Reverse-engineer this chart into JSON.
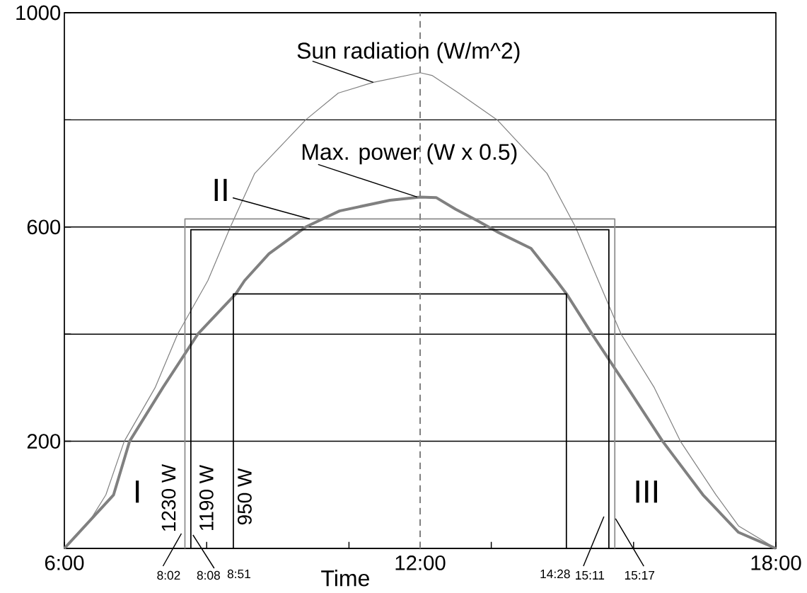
{
  "chart_data": {
    "type": "line",
    "xlabel": "Time",
    "xlim": [
      6,
      18
    ],
    "ylim": [
      0,
      1000
    ],
    "xticks": [
      {
        "value": 6,
        "label": "6:00"
      },
      {
        "value": 8.4,
        "label": null
      },
      {
        "value": 10.8,
        "label": null
      },
      {
        "value": 12,
        "label": "12:00"
      },
      {
        "value": 13.2,
        "label": null
      },
      {
        "value": 15.6,
        "label": null
      },
      {
        "value": 18,
        "label": "18:00"
      }
    ],
    "yticks": [
      {
        "value": 0,
        "label": null
      },
      200,
      {
        "value": 400,
        "label": null
      },
      600,
      {
        "value": 800,
        "label": null
      },
      1000
    ],
    "grid": "y",
    "line_style": "solid",
    "series": [
      {
        "color": "#808080",
        "x": [
          6,
          6.42,
          6.7,
          7.01,
          7.53,
          7.91,
          8.42,
          8.8,
          9.21,
          10.07,
          10.62,
          11.21,
          12,
          12.2,
          12.65,
          13.3,
          14.14,
          14.62,
          15.39,
          15.95,
          16.39,
          16.99,
          17.37,
          18
        ],
        "values": [
          0,
          50,
          100,
          200,
          300,
          400,
          500,
          600,
          700,
          800,
          850,
          870,
          888,
          883,
          850,
          800,
          700,
          600,
          400,
          300,
          200,
          100,
          42,
          0
        ]
      },
      {
        "color": "#808080",
        "x": [
          6,
          6.83,
          7.1,
          7.66,
          8.25,
          8.89,
          9.04,
          9.45,
          10.07,
          10.64,
          11.49,
          12,
          12.27,
          12.6,
          12.98,
          13.3,
          13.87,
          14.3,
          14.47,
          14.9,
          15.5,
          16.09,
          16.77,
          17.37,
          18
        ],
        "values": [
          0,
          100,
          200,
          300,
          400,
          475,
          500,
          550,
          600,
          630,
          650,
          656,
          655,
          633,
          611,
          591,
          560,
          500,
          475,
          400,
          300,
          200,
          100,
          30,
          0
        ]
      },
      {
        "name": "1230 W",
        "color": "#8c8c8c",
        "x": [
          8.0333,
          8.0333,
          15.2833,
          15.2833
        ],
        "values": [
          0,
          615,
          615,
          0
        ]
      },
      {
        "name": "1190 W",
        "color": "#000000",
        "x": [
          8.1333,
          8.1333,
          15.1833,
          15.1833
        ],
        "values": [
          0,
          595,
          595,
          0
        ]
      },
      {
        "name": "950 W",
        "color": "#000000",
        "x": [
          8.85,
          8.85,
          14.4667,
          14.4667
        ],
        "values": [
          0,
          475,
          475,
          0
        ]
      }
    ],
    "ref_lines": [
      {
        "axis": "x",
        "value": 12,
        "color": "#808080",
        "line_style": "dashed"
      }
    ],
    "annotations": [
      {
        "text": "Sun radiation (W/m^2)",
        "x": 11.21,
        "y": 870
      },
      {
        "text": "Max. power (W x 0.5)",
        "x": 11.95,
        "y": 656
      },
      {
        "text": "II",
        "x": 10.14,
        "y": 615
      },
      "I",
      "III",
      {
        "text": "8:02",
        "x": 8.0333,
        "y": 0
      },
      {
        "text": "8:08",
        "x": 8.1333,
        "y": 0
      },
      {
        "text": "8:51",
        "x": 8.85,
        "y": 0
      },
      {
        "text": "14:28",
        "x": 14.4667,
        "y": 0
      },
      {
        "text": "15:11",
        "x": 15.1833,
        "y": 0
      },
      {
        "text": "15:17",
        "x": 15.2833,
        "y": 0
      }
    ]
  }
}
